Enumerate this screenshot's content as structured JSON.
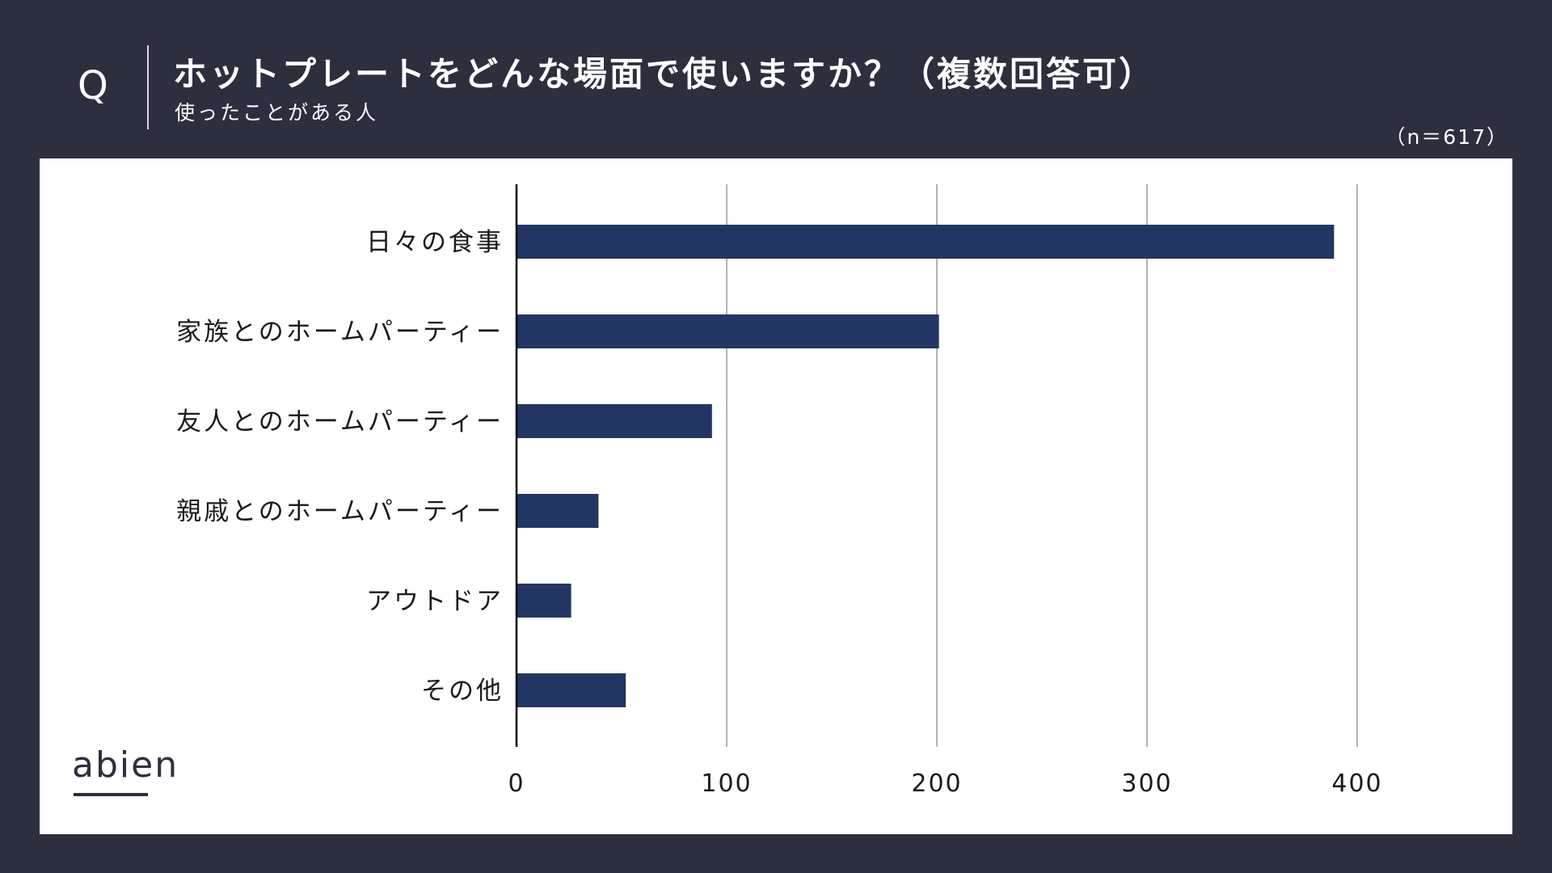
{
  "header": {
    "q_mark": "Q",
    "title": "ホットプレートをどんな場面で使いますか？（複数回答可）",
    "subtitle": "使ったことがある人",
    "sample_size": "（n＝617）"
  },
  "logo": {
    "text": "abien"
  },
  "colors": {
    "background": "#2c2f3e",
    "panel": "#ffffff",
    "bar": "#223663",
    "grid": "#9a9a9a",
    "axis": "#000000",
    "label": "#1a1a1a"
  },
  "chart_data": {
    "type": "bar",
    "orientation": "horizontal",
    "categories": [
      "日々の食事",
      "家族とのホームパーティー",
      "友人とのホームパーティー",
      "親戚とのホームパーティー",
      "アウトドア",
      "その他"
    ],
    "values": [
      389,
      201,
      93,
      39,
      26,
      52
    ],
    "xlim": [
      0,
      400
    ],
    "xticks": [
      0,
      100,
      200,
      300,
      400
    ],
    "grid": true,
    "legend": false
  }
}
